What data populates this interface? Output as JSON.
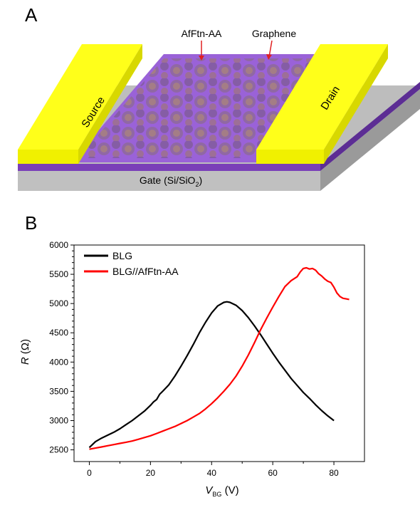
{
  "figure": {
    "panel_a_label": "A",
    "panel_b_label": "B"
  },
  "device": {
    "source_label": "Source",
    "drain_label": "Drain",
    "gate_label": "Gate (Si/SiO",
    "gate_subscript": "2",
    "gate_close": ")",
    "protein_label": "AfFtn-AA",
    "graphene_label": "Graphene",
    "colors": {
      "electrode": "#ffff1a",
      "dielectric": "#7a3fb8",
      "substrate": "#bdbdbd",
      "graphene": "#9a62d8"
    }
  },
  "chart_data": {
    "type": "line",
    "ylabel": "R",
    "ylabel_unit": "(Ω)",
    "xlabel": "V",
    "xlabel_sub": "BG",
    "xlabel_unit": "(V)",
    "xlim": [
      -5,
      90
    ],
    "ylim": [
      2300,
      6000
    ],
    "xticks": [
      0,
      20,
      40,
      60,
      80
    ],
    "yticks": [
      2500,
      3000,
      3500,
      4000,
      4500,
      5000,
      5500,
      6000
    ],
    "legend_position": "top-left",
    "series": [
      {
        "name": "BLG",
        "color": "#000000",
        "x": [
          0,
          1,
          2,
          4,
          6,
          8,
          10,
          12,
          14,
          16,
          18,
          20,
          21,
          22,
          23,
          24,
          26,
          28,
          30,
          32,
          34,
          36,
          38,
          40,
          42,
          44,
          45,
          46,
          48,
          50,
          52,
          54,
          56,
          58,
          60,
          62,
          64,
          66,
          68,
          70,
          72,
          74,
          76,
          78,
          80
        ],
        "y": [
          2540,
          2590,
          2640,
          2700,
          2750,
          2800,
          2860,
          2930,
          3000,
          3080,
          3160,
          3260,
          3320,
          3360,
          3450,
          3500,
          3610,
          3760,
          3930,
          4110,
          4300,
          4500,
          4680,
          4840,
          4960,
          5020,
          5030,
          5020,
          4970,
          4880,
          4760,
          4620,
          4470,
          4310,
          4150,
          4000,
          3860,
          3720,
          3600,
          3480,
          3380,
          3270,
          3170,
          3080,
          3000
        ]
      },
      {
        "name": "BLG//AfFtn-AA",
        "color": "#ff0000",
        "x": [
          0,
          2,
          4,
          6,
          8,
          10,
          12,
          14,
          16,
          18,
          20,
          22,
          24,
          26,
          28,
          30,
          32,
          34,
          36,
          38,
          40,
          42,
          44,
          46,
          48,
          50,
          52,
          54,
          56,
          58,
          60,
          62,
          64,
          66,
          68,
          69,
          70,
          71,
          72,
          73,
          74,
          75,
          76,
          77,
          78,
          79,
          80,
          81,
          82,
          83,
          84,
          85
        ],
        "y": [
          2510,
          2530,
          2550,
          2570,
          2590,
          2610,
          2630,
          2650,
          2680,
          2710,
          2740,
          2780,
          2820,
          2860,
          2900,
          2950,
          3000,
          3060,
          3120,
          3200,
          3290,
          3390,
          3500,
          3620,
          3760,
          3930,
          4120,
          4330,
          4550,
          4750,
          4940,
          5120,
          5290,
          5390,
          5460,
          5540,
          5600,
          5610,
          5590,
          5600,
          5570,
          5510,
          5470,
          5420,
          5380,
          5360,
          5280,
          5180,
          5120,
          5090,
          5080,
          5070
        ]
      }
    ]
  }
}
